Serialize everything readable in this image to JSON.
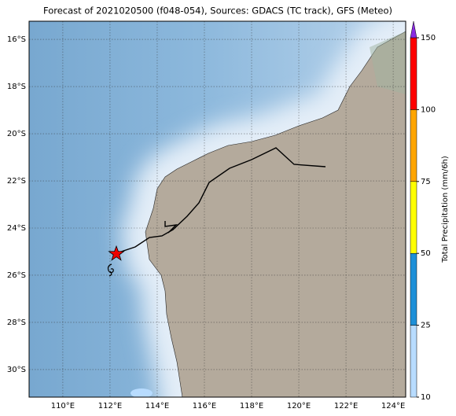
{
  "map": {
    "title": "Forecast of 2021020500 (f048-054), Sources: GDACS (TC track), GFS (Meteo)",
    "xlim": [
      108.57,
      124.53
    ],
    "ylim": [
      -31.17,
      -15.23
    ],
    "xticks": [
      {
        "value": 110,
        "label": "110°E"
      },
      {
        "value": 112,
        "label": "112°E"
      },
      {
        "value": 114,
        "label": "114°E"
      },
      {
        "value": 116,
        "label": "116°E"
      },
      {
        "value": 118,
        "label": "118°E"
      },
      {
        "value": 120,
        "label": "120°E"
      },
      {
        "value": 122,
        "label": "122°E"
      },
      {
        "value": 124,
        "label": "124°E"
      }
    ],
    "yticks": [
      {
        "value": -16,
        "label": "16°S"
      },
      {
        "value": -18,
        "label": "18°S"
      },
      {
        "value": -20,
        "label": "20°S"
      },
      {
        "value": -22,
        "label": "22°S"
      },
      {
        "value": -24,
        "label": "24°S"
      },
      {
        "value": -26,
        "label": "26°S"
      },
      {
        "value": -28,
        "label": "28°S"
      },
      {
        "value": -30,
        "label": "30°S"
      }
    ],
    "grid": true,
    "colorbar": {
      "label": "Total Precipitation (mm/6h)",
      "ticks": [
        10,
        25,
        50,
        75,
        100,
        150
      ],
      "colors": [
        "#b8dcff",
        "#1e90d8",
        "#ffff00",
        "#ffa500",
        "#ff0000"
      ],
      "extend_color": "#8a2be2"
    }
  }
}
